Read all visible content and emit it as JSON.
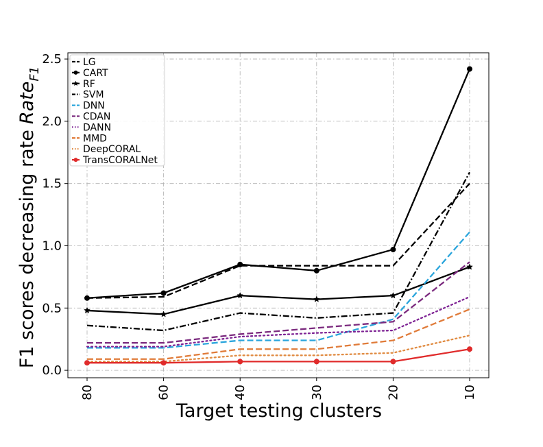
{
  "chart_data": {
    "type": "line",
    "title": "",
    "xlabel": "Target testing clusters",
    "ylabel": "F1 scores decreasing rate",
    "ylabel_math": "Rate",
    "ylabel_sub": "F1",
    "categories": [
      "80",
      "60",
      "40",
      "30",
      "20",
      "10"
    ],
    "ylim": [
      -0.06,
      2.55
    ],
    "yticks": [
      "0.0",
      "0.5",
      "1.0",
      "1.5",
      "2.0",
      "2.5"
    ],
    "grid": true,
    "legend_position": "upper-left",
    "series": [
      {
        "name": "LG",
        "color": "#000000",
        "dash": "dashed",
        "marker": "none",
        "values": [
          0.58,
          0.59,
          0.84,
          0.84,
          0.84,
          1.5
        ]
      },
      {
        "name": "CART",
        "color": "#000000",
        "dash": "solid",
        "marker": "circle",
        "values": [
          0.58,
          0.62,
          0.85,
          0.8,
          0.97,
          2.42
        ]
      },
      {
        "name": "RF",
        "color": "#000000",
        "dash": "solid",
        "marker": "star",
        "values": [
          0.48,
          0.45,
          0.6,
          0.57,
          0.6,
          0.83
        ]
      },
      {
        "name": "SVM",
        "color": "#000000",
        "dash": "dashdot",
        "marker": "none",
        "values": [
          0.36,
          0.32,
          0.46,
          0.42,
          0.46,
          1.59
        ]
      },
      {
        "name": "DNN",
        "color": "#2aa5dc",
        "dash": "dashed",
        "marker": "none",
        "values": [
          0.18,
          0.18,
          0.24,
          0.24,
          0.41,
          1.11
        ]
      },
      {
        "name": "CDAN",
        "color": "#7b2a7e",
        "dash": "dashed",
        "marker": "none",
        "values": [
          0.22,
          0.22,
          0.29,
          0.34,
          0.39,
          0.87
        ]
      },
      {
        "name": "DANN",
        "color": "#7e2394",
        "dash": "dotted",
        "marker": "none",
        "values": [
          0.19,
          0.19,
          0.27,
          0.3,
          0.32,
          0.59
        ]
      },
      {
        "name": "MMD",
        "color": "#e07b39",
        "dash": "dashed",
        "marker": "none",
        "values": [
          0.09,
          0.09,
          0.17,
          0.17,
          0.24,
          0.49
        ]
      },
      {
        "name": "DeepCORAL",
        "color": "#e08a40",
        "dash": "dotted",
        "marker": "none",
        "values": [
          0.07,
          0.07,
          0.12,
          0.12,
          0.14,
          0.28
        ]
      },
      {
        "name": "TransCORALNet",
        "color": "#e02b2b",
        "dash": "solid",
        "marker": "circle",
        "values": [
          0.06,
          0.06,
          0.07,
          0.07,
          0.07,
          0.17
        ]
      }
    ]
  }
}
